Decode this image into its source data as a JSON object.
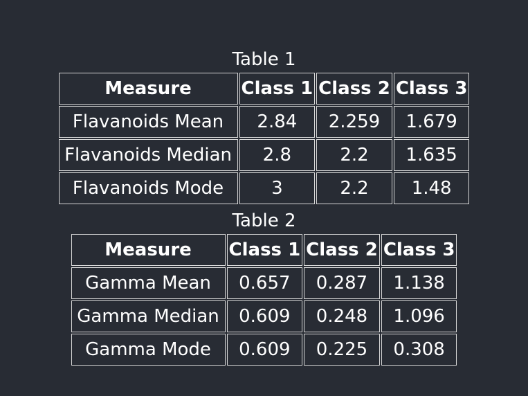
{
  "table1": {
    "caption": "Table 1",
    "headers": [
      "Measure",
      "Class 1",
      "Class 2",
      "Class 3"
    ],
    "rows": [
      [
        "Flavanoids Mean",
        "2.84",
        "2.259",
        "1.679"
      ],
      [
        "Flavanoids Median",
        "2.8",
        "2.2",
        "1.635"
      ],
      [
        "Flavanoids Mode",
        "3",
        "2.2",
        "1.48"
      ]
    ]
  },
  "table2": {
    "caption": "Table 2",
    "headers": [
      "Measure",
      "Class 1",
      "Class 2",
      "Class 3"
    ],
    "rows": [
      [
        "Gamma Mean",
        "0.657",
        "0.287",
        "1.138"
      ],
      [
        "Gamma Median",
        "0.609",
        "0.248",
        "1.096"
      ],
      [
        "Gamma Mode",
        "0.609",
        "0.225",
        "0.308"
      ]
    ]
  },
  "colors": {
    "background": "#282c34",
    "text": "#ffffff",
    "border": "#d8d8d8"
  }
}
